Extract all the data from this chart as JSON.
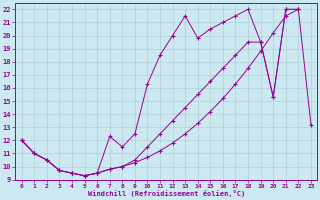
{
  "xlabel": "Windchill (Refroidissement éolien,°C)",
  "xlim": [
    -0.5,
    23.5
  ],
  "ylim": [
    9,
    22.5
  ],
  "xticks": [
    0,
    1,
    2,
    3,
    4,
    5,
    6,
    7,
    8,
    9,
    10,
    11,
    12,
    13,
    14,
    15,
    16,
    17,
    18,
    19,
    20,
    21,
    22,
    23
  ],
  "yticks": [
    9,
    10,
    11,
    12,
    13,
    14,
    15,
    16,
    17,
    18,
    19,
    20,
    21,
    22
  ],
  "background_color": "#cce8f0",
  "line_color": "#990099",
  "grid_color": "#aacccc",
  "series": [
    {
      "x": [
        0,
        1,
        2,
        3,
        4,
        5,
        6,
        7,
        8,
        9,
        10,
        11,
        12,
        13,
        14,
        15,
        16,
        17,
        18,
        19,
        20,
        21,
        22
      ],
      "y": [
        12,
        11,
        10.5,
        9.7,
        9.5,
        9.3,
        9.5,
        9.8,
        10.0,
        10.3,
        10.7,
        11.2,
        11.8,
        12.5,
        13.3,
        14.2,
        15.2,
        16.3,
        17.5,
        18.8,
        20.2,
        21.5,
        22.0
      ]
    },
    {
      "x": [
        0,
        1,
        2,
        3,
        4,
        5,
        6,
        7,
        8,
        9,
        10,
        11,
        12,
        13,
        14,
        15,
        16,
        17,
        18,
        19,
        20,
        21,
        22
      ],
      "y": [
        12,
        11,
        10.5,
        9.7,
        9.5,
        9.3,
        9.5,
        9.8,
        10.0,
        10.5,
        11.5,
        12.5,
        13.5,
        14.5,
        15.5,
        16.5,
        17.5,
        18.5,
        19.5,
        19.5,
        15.3,
        22.0,
        22.0
      ]
    },
    {
      "x": [
        0,
        1,
        2,
        3,
        4,
        5,
        6,
        7,
        8,
        9,
        10,
        11,
        12,
        13,
        14,
        15,
        16,
        17,
        18,
        19,
        20,
        21,
        22,
        23
      ],
      "y": [
        12,
        11,
        10.5,
        9.7,
        9.5,
        9.3,
        9.5,
        12.3,
        11.5,
        12.5,
        16.3,
        18.5,
        20.0,
        21.5,
        19.8,
        20.5,
        21.0,
        21.5,
        22.0,
        19.5,
        15.3,
        22.0,
        22.0,
        13.2
      ]
    }
  ]
}
